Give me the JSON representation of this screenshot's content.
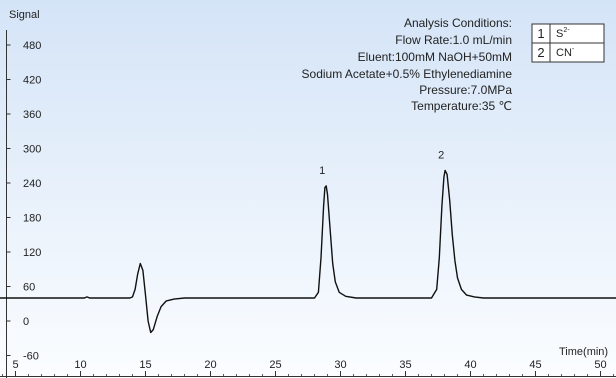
{
  "chart_data": {
    "type": "line",
    "ylabel": "Signal",
    "xlabel": "Time(min)",
    "xlim": [
      0,
      54
    ],
    "ylim": [
      -60,
      530
    ],
    "x_ticks": [
      5,
      10,
      15,
      20,
      25,
      30,
      35,
      40,
      45,
      50
    ],
    "y_ticks": [
      -60,
      0,
      60,
      120,
      180,
      240,
      300,
      360,
      420,
      480
    ],
    "grid": false,
    "baseline": 40,
    "points": [
      [
        0,
        40
      ],
      [
        3.4,
        40
      ],
      [
        3.5,
        42
      ],
      [
        3.6,
        40
      ],
      [
        10.3,
        40
      ],
      [
        10.5,
        42
      ],
      [
        10.7,
        40
      ],
      [
        13.8,
        40
      ],
      [
        14.0,
        42
      ],
      [
        14.2,
        55
      ],
      [
        14.4,
        82
      ],
      [
        14.6,
        100
      ],
      [
        14.8,
        88
      ],
      [
        15.0,
        45
      ],
      [
        15.2,
        0
      ],
      [
        15.4,
        -20
      ],
      [
        15.6,
        -15
      ],
      [
        15.9,
        8
      ],
      [
        16.2,
        25
      ],
      [
        16.6,
        35
      ],
      [
        17.2,
        38
      ],
      [
        18.0,
        40
      ],
      [
        19.5,
        40
      ],
      [
        28.0,
        40
      ],
      [
        28.3,
        50
      ],
      [
        28.5,
        110
      ],
      [
        28.7,
        200
      ],
      [
        28.8,
        232
      ],
      [
        28.9,
        235
      ],
      [
        29.0,
        220
      ],
      [
        29.2,
        160
      ],
      [
        29.4,
        100
      ],
      [
        29.6,
        68
      ],
      [
        29.9,
        50
      ],
      [
        30.4,
        43
      ],
      [
        31.2,
        40
      ],
      [
        37.0,
        40
      ],
      [
        37.4,
        55
      ],
      [
        37.6,
        110
      ],
      [
        37.8,
        200
      ],
      [
        37.95,
        250
      ],
      [
        38.05,
        262
      ],
      [
        38.2,
        255
      ],
      [
        38.4,
        210
      ],
      [
        38.6,
        150
      ],
      [
        38.8,
        105
      ],
      [
        39.0,
        75
      ],
      [
        39.3,
        55
      ],
      [
        39.7,
        45
      ],
      [
        40.3,
        42
      ],
      [
        41.0,
        40
      ],
      [
        54,
        40
      ]
    ],
    "peak_labels": [
      {
        "label": "1",
        "x": 28.9,
        "y": 235
      },
      {
        "label": "2",
        "x": 38.05,
        "y": 262
      }
    ],
    "annotation": [
      "Analysis Conditions:",
      "Flow Rate:1.0 mL/min",
      "Eluent:100mM NaOH+50mM",
      "Sodium Acetate+0.5% Ethylenediamine",
      "Pressure:7.0MPa",
      "Temperature:35 ℃"
    ],
    "legend": {
      "placement": "top-right",
      "entries": [
        {
          "num": "1",
          "ion": "S",
          "charge": "2-"
        },
        {
          "num": "2",
          "ion": "CN",
          "charge": "-"
        }
      ]
    },
    "colors": {
      "background_top": "#d4e4f7",
      "background_bottom": "#fbfdff",
      "line": "#111111",
      "axis": "#333333"
    }
  }
}
